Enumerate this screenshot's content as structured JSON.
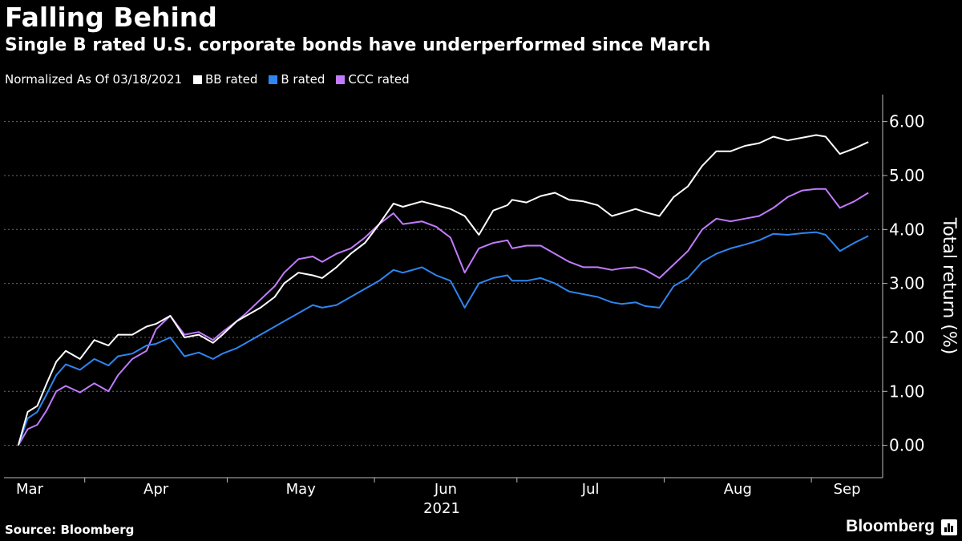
{
  "header": {
    "title": "Falling Behind",
    "subtitle": "Single B rated U.S. corporate bonds have underperformed since March"
  },
  "legend": {
    "note": "Normalized As Of 03/18/2021",
    "items": [
      {
        "label": "BB rated",
        "color": "#ffffff"
      },
      {
        "label": "B rated",
        "color": "#2e86f0"
      },
      {
        "label": "CCC rated",
        "color": "#c27bff"
      }
    ]
  },
  "footer": {
    "source": "Source: Bloomberg",
    "brand": "Bloomberg"
  },
  "chart_data": {
    "type": "line",
    "title": "Falling Behind",
    "ylabel": "Total return (%)",
    "xlabel": "2021",
    "ylim": [
      -0.6,
      6.5
    ],
    "yticks": [
      0,
      1,
      2,
      3,
      4,
      5,
      6
    ],
    "ytick_labels": [
      "0.00",
      "1.00",
      "2.00",
      "3.00",
      "4.00",
      "5.00",
      "6.00"
    ],
    "x_month_labels": [
      "Mar",
      "Apr",
      "May",
      "Jun",
      "Jul",
      "Aug",
      "Sep"
    ],
    "year_label": "2021",
    "x_range_days": [
      -3,
      182
    ],
    "x_month_starts_days": [
      -17,
      14,
      44,
      75,
      105,
      136,
      167
    ],
    "series": [
      {
        "name": "BB rated",
        "color": "#ffffff",
        "x": [
          0,
          2,
          4,
          6,
          8,
          10,
          13,
          16,
          19,
          21,
          24,
          27,
          29,
          32,
          35,
          38,
          41,
          43,
          46,
          48,
          51,
          54,
          56,
          59,
          62,
          64,
          67,
          70,
          73,
          76,
          79,
          81,
          85,
          88,
          91,
          94,
          97,
          100,
          103,
          104,
          107,
          110,
          113,
          116,
          119,
          122,
          125,
          127,
          130,
          132,
          135,
          138,
          141,
          144,
          147,
          150,
          153,
          156,
          159,
          162,
          165,
          168,
          170,
          173,
          176,
          179
        ],
        "values": [
          0,
          0.62,
          0.73,
          1.15,
          1.55,
          1.75,
          1.6,
          1.95,
          1.85,
          2.05,
          2.05,
          2.2,
          2.25,
          2.4,
          2.0,
          2.05,
          1.9,
          2.05,
          2.3,
          2.4,
          2.55,
          2.75,
          3.0,
          3.2,
          3.15,
          3.1,
          3.3,
          3.55,
          3.75,
          4.1,
          4.48,
          4.42,
          4.52,
          4.45,
          4.38,
          4.25,
          3.9,
          4.35,
          4.45,
          4.55,
          4.5,
          4.62,
          4.68,
          4.55,
          4.52,
          4.45,
          4.25,
          4.3,
          4.38,
          4.32,
          4.25,
          4.6,
          4.8,
          5.18,
          5.45,
          5.45,
          5.55,
          5.6,
          5.72,
          5.65,
          5.7,
          5.75,
          5.72,
          5.4,
          5.5,
          5.62
        ]
      },
      {
        "name": "B rated",
        "color": "#2e86f0",
        "x": [
          0,
          2,
          4,
          6,
          8,
          10,
          13,
          16,
          19,
          21,
          24,
          27,
          29,
          32,
          35,
          38,
          41,
          43,
          46,
          48,
          51,
          54,
          56,
          59,
          62,
          64,
          67,
          70,
          73,
          76,
          79,
          81,
          85,
          88,
          91,
          94,
          97,
          100,
          103,
          104,
          107,
          110,
          113,
          116,
          119,
          122,
          125,
          127,
          130,
          132,
          135,
          138,
          141,
          144,
          147,
          150,
          153,
          156,
          159,
          162,
          165,
          168,
          170,
          173,
          176,
          179
        ],
        "values": [
          0,
          0.5,
          0.62,
          0.95,
          1.3,
          1.5,
          1.4,
          1.6,
          1.48,
          1.65,
          1.7,
          1.85,
          1.88,
          2.0,
          1.65,
          1.72,
          1.6,
          1.7,
          1.8,
          1.9,
          2.05,
          2.2,
          2.3,
          2.45,
          2.6,
          2.55,
          2.6,
          2.75,
          2.9,
          3.05,
          3.25,
          3.2,
          3.3,
          3.15,
          3.05,
          2.55,
          3.0,
          3.1,
          3.15,
          3.05,
          3.05,
          3.1,
          3.0,
          2.85,
          2.8,
          2.75,
          2.65,
          2.62,
          2.65,
          2.58,
          2.55,
          2.95,
          3.1,
          3.4,
          3.55,
          3.65,
          3.72,
          3.8,
          3.92,
          3.9,
          3.93,
          3.95,
          3.9,
          3.6,
          3.75,
          3.88
        ]
      },
      {
        "name": "CCC rated",
        "color": "#c27bff",
        "x": [
          0,
          2,
          4,
          6,
          8,
          10,
          13,
          16,
          19,
          21,
          24,
          27,
          29,
          32,
          35,
          38,
          41,
          43,
          46,
          48,
          51,
          54,
          56,
          59,
          62,
          64,
          67,
          70,
          73,
          76,
          79,
          81,
          85,
          88,
          91,
          94,
          97,
          100,
          103,
          104,
          107,
          110,
          113,
          116,
          119,
          122,
          125,
          127,
          130,
          132,
          135,
          138,
          141,
          144,
          147,
          150,
          153,
          156,
          159,
          162,
          165,
          168,
          170,
          173,
          176,
          179
        ],
        "values": [
          0,
          0.3,
          0.38,
          0.65,
          1.0,
          1.1,
          0.98,
          1.15,
          1.0,
          1.3,
          1.6,
          1.75,
          2.15,
          2.4,
          2.05,
          2.1,
          1.95,
          2.1,
          2.3,
          2.45,
          2.7,
          2.95,
          3.2,
          3.45,
          3.5,
          3.4,
          3.55,
          3.65,
          3.85,
          4.1,
          4.3,
          4.1,
          4.15,
          4.05,
          3.85,
          3.2,
          3.65,
          3.75,
          3.8,
          3.65,
          3.7,
          3.7,
          3.55,
          3.4,
          3.3,
          3.3,
          3.25,
          3.28,
          3.3,
          3.25,
          3.1,
          3.35,
          3.6,
          4.0,
          4.2,
          4.15,
          4.2,
          4.25,
          4.4,
          4.6,
          4.72,
          4.75,
          4.75,
          4.4,
          4.52,
          4.68
        ]
      }
    ]
  }
}
